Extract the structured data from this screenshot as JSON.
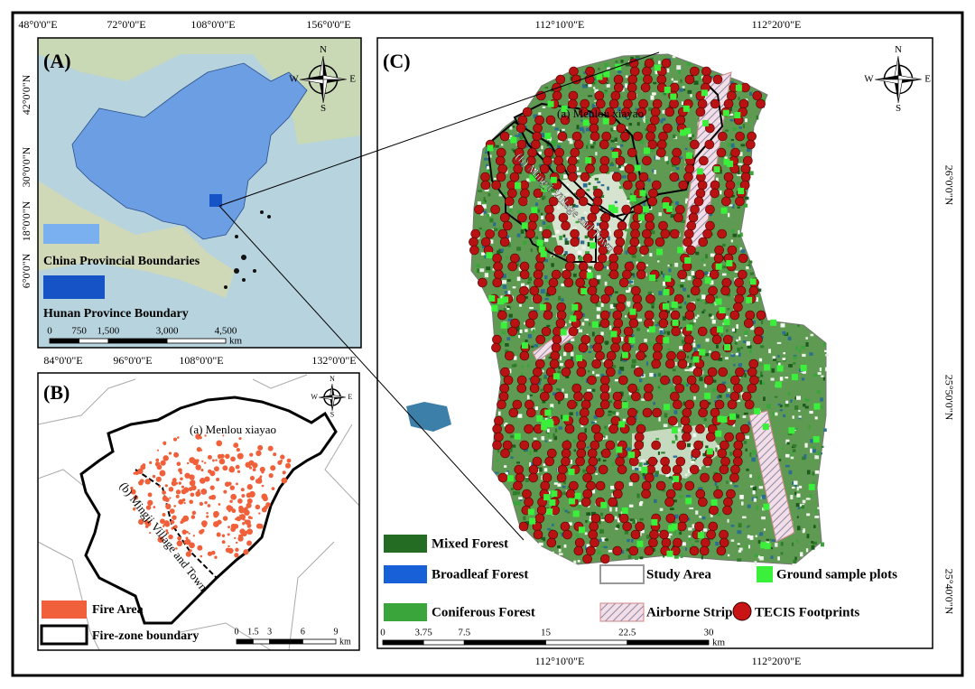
{
  "compass": {
    "n": "N",
    "s": "S",
    "e": "E",
    "w": "W"
  },
  "panel_a": {
    "label": "(A)",
    "top_coords": [
      "48°0'0\"E",
      "72°0'0\"E",
      "108°0'0\"E",
      "156°0'0\"E"
    ],
    "bottom_coords": [
      "84°0'0\"E",
      "96°0'0\"E",
      "108°0'0\"E",
      "132°0'0\"E"
    ],
    "left_coords": [
      "42°0'0\"N",
      "30°0'0\"N",
      "18°0'0\"N",
      "6°0'0\"N"
    ],
    "legend": [
      "China Provincial Boundaries",
      "Hunan Province Boundary"
    ],
    "scale": [
      "0",
      "750",
      "1,500",
      "3,000",
      "4,500",
      "km"
    ]
  },
  "panel_b": {
    "label": "(B)",
    "area_a": "(a) Menlou xiayao",
    "area_b": "(b) Mingji Village and Town",
    "legend": [
      "Fire Area",
      "Fire-zone boundary"
    ],
    "scale": [
      "0",
      "1.5",
      "3",
      "6",
      "9",
      "km"
    ]
  },
  "panel_c": {
    "label": "(C)",
    "top_coords": [
      "112°10'0\"E",
      "112°20'0\"E"
    ],
    "bottom_coords": [
      "112°10'0\"E",
      "112°20'0\"E"
    ],
    "right_coords": [
      "26°0'0\"N",
      "25°50'0\"N",
      "25°40'0\"N"
    ],
    "area_a": "(a) Menlou xiayao",
    "area_b": "(b) Mingji Village and Town",
    "legend": [
      "Mixed Forest",
      "Broadleaf Forest",
      "Coniferous Forest",
      "Study Area",
      "Airborne Strip",
      "Ground sample plots",
      "TECIS Footprints"
    ],
    "scale": [
      "0",
      "3.75",
      "7.5",
      "15",
      "22.5",
      "30",
      "km"
    ]
  }
}
